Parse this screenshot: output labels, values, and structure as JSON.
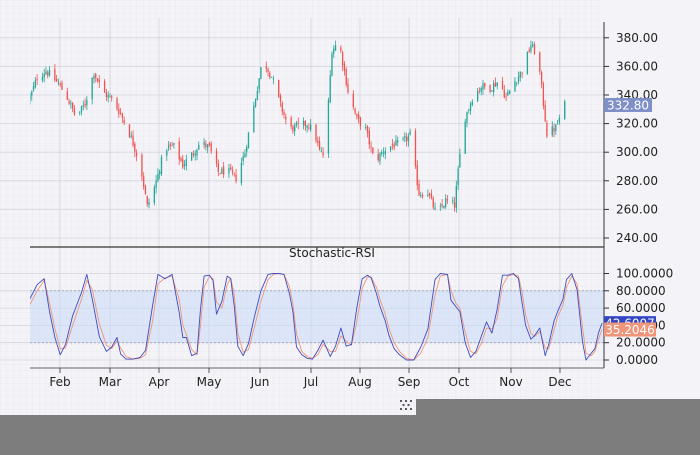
{
  "chart_data": [
    {
      "type": "candlestick",
      "panel": "price",
      "x_ticks": [
        "Feb",
        "Mar",
        "Apr",
        "May",
        "Jun",
        "Jul",
        "Aug",
        "Sep",
        "Oct",
        "Nov",
        "Dec"
      ],
      "y_ticks": [
        "240.00",
        "260.00",
        "280.00",
        "300.00",
        "320.00",
        "340.00",
        "360.00",
        "380.00"
      ],
      "ylim": [
        234,
        394
      ],
      "last_price_label": "332.80",
      "colors": {
        "up": "#26a69a",
        "down": "#ef5350",
        "last_price": "#7f8fc8"
      },
      "close_trace": [
        [
          0,
          338
        ],
        [
          4,
          352
        ],
        [
          9,
          357
        ],
        [
          16,
          348
        ],
        [
          21,
          338
        ],
        [
          26,
          324
        ],
        [
          31,
          334
        ],
        [
          36,
          356
        ],
        [
          41,
          342
        ],
        [
          46,
          337
        ],
        [
          51,
          327
        ],
        [
          57,
          310
        ],
        [
          62,
          292
        ],
        [
          66,
          262
        ],
        [
          70,
          275
        ],
        [
          76,
          303
        ],
        [
          81,
          304
        ],
        [
          86,
          291
        ],
        [
          91,
          298
        ],
        [
          96,
          307
        ],
        [
          101,
          303
        ],
        [
          106,
          286
        ],
        [
          111,
          287
        ],
        [
          116,
          282
        ],
        [
          121,
          300
        ],
        [
          126,
          332
        ],
        [
          131,
          365
        ],
        [
          136,
          353
        ],
        [
          141,
          333
        ],
        [
          146,
          316
        ],
        [
          151,
          318
        ],
        [
          156,
          320
        ],
        [
          160,
          314
        ],
        [
          163,
          301
        ],
        [
          166,
          297
        ],
        [
          170,
          372
        ],
        [
          174,
          377
        ],
        [
          179,
          343
        ],
        [
          184,
          323
        ],
        [
          189,
          316
        ],
        [
          194,
          293
        ],
        [
          199,
          301
        ],
        [
          204,
          305
        ],
        [
          209,
          306
        ],
        [
          214,
          312
        ],
        [
          219,
          271
        ],
        [
          224,
          272
        ],
        [
          229,
          256
        ],
        [
          234,
          266
        ],
        [
          239,
          263
        ],
        [
          244,
          321
        ],
        [
          249,
          338
        ],
        [
          254,
          346
        ],
        [
          259,
          345
        ],
        [
          264,
          350
        ],
        [
          268,
          338
        ],
        [
          272,
          348
        ],
        [
          277,
          357
        ],
        [
          282,
          375
        ],
        [
          286,
          366
        ],
        [
          291,
          313
        ],
        [
          296,
          317
        ],
        [
          301,
          333
        ]
      ]
    },
    {
      "type": "line",
      "panel": "indicator",
      "title": "Stochastic-RSI",
      "y_ticks": [
        "0.0000",
        "20.0000",
        "40.0000",
        "60.0000",
        "80.0000",
        "100.0000"
      ],
      "ylim": [
        -6,
        108
      ],
      "band": [
        20,
        80
      ],
      "x_ticks": [
        "Feb",
        "Mar",
        "Apr",
        "May",
        "Jun",
        "Jul",
        "Aug",
        "Sep",
        "Oct",
        "Nov",
        "Dec"
      ],
      "series": [
        {
          "label": "42.6007",
          "color": "#3f4bc0",
          "values": [
            [
              0,
              71
            ],
            [
              4,
              87
            ],
            [
              8,
              94
            ],
            [
              11,
              56
            ],
            [
              14,
              26
            ],
            [
              17,
              6
            ],
            [
              20,
              18
            ],
            [
              24,
              51
            ],
            [
              29,
              78
            ],
            [
              32,
              99
            ],
            [
              35,
              71
            ],
            [
              39,
              27
            ],
            [
              43,
              10
            ],
            [
              46,
              15
            ],
            [
              49,
              26
            ],
            [
              51,
              7
            ],
            [
              54,
              1
            ],
            [
              58,
              1
            ],
            [
              62,
              3
            ],
            [
              65,
              11
            ],
            [
              69,
              63
            ],
            [
              72,
              99
            ],
            [
              76,
              94
            ],
            [
              80,
              99
            ],
            [
              84,
              55
            ],
            [
              86,
              26
            ],
            [
              88,
              26
            ],
            [
              91,
              5
            ],
            [
              94,
              8
            ],
            [
              96,
              59
            ],
            [
              98,
              97
            ],
            [
              101,
              98
            ],
            [
              103,
              92
            ],
            [
              105,
              53
            ],
            [
              108,
              68
            ],
            [
              111,
              97
            ],
            [
              113,
              94
            ],
            [
              115,
              62
            ],
            [
              117,
              16
            ],
            [
              120,
              5
            ],
            [
              123,
              19
            ],
            [
              126,
              47
            ],
            [
              130,
              80
            ],
            [
              134,
              99
            ],
            [
              137,
              100
            ],
            [
              140,
              100
            ],
            [
              143,
              99
            ],
            [
              146,
              77
            ],
            [
              148,
              56
            ],
            [
              150,
              15
            ],
            [
              153,
              6
            ],
            [
              156,
              2
            ],
            [
              159,
              1
            ],
            [
              162,
              11
            ],
            [
              165,
              23
            ],
            [
              169,
              4
            ],
            [
              172,
              16
            ],
            [
              175,
              37
            ],
            [
              178,
              16
            ],
            [
              181,
              18
            ],
            [
              184,
              61
            ],
            [
              187,
              94
            ],
            [
              190,
              98
            ],
            [
              192,
              95
            ],
            [
              195,
              77
            ],
            [
              197,
              62
            ],
            [
              200,
              45
            ],
            [
              202,
              29
            ],
            [
              205,
              13
            ],
            [
              208,
              6
            ],
            [
              212,
              0
            ],
            [
              216,
              0
            ],
            [
              220,
              15
            ],
            [
              224,
              36
            ],
            [
              228,
              93
            ],
            [
              231,
              100
            ],
            [
              235,
              99
            ],
            [
              237,
              69
            ],
            [
              240,
              61
            ],
            [
              242,
              56
            ],
            [
              245,
              20
            ],
            [
              248,
              3
            ],
            [
              251,
              10
            ],
            [
              254,
              27
            ],
            [
              257,
              44
            ],
            [
              260,
              31
            ],
            [
              263,
              59
            ],
            [
              266,
              98
            ],
            [
              269,
              98
            ],
            [
              272,
              100
            ],
            [
              275,
              94
            ],
            [
              277,
              66
            ],
            [
              279,
              40
            ],
            [
              282,
              24
            ],
            [
              284,
              28
            ],
            [
              287,
              37
            ],
            [
              290,
              5
            ],
            [
              292,
              18
            ],
            [
              295,
              45
            ],
            [
              297,
              56
            ],
            [
              300,
              70
            ],
            [
              302,
              93
            ],
            [
              305,
              100
            ],
            [
              308,
              81
            ],
            [
              311,
              21
            ],
            [
              313,
              0
            ],
            [
              316,
              8
            ],
            [
              318,
              13
            ],
            [
              320,
              31
            ],
            [
              322,
              42.6
            ]
          ]
        },
        {
          "label": "35.2046",
          "color": "#f0957a",
          "values": [
            [
              0,
              64
            ],
            [
              4,
              80
            ],
            [
              8,
              92
            ],
            [
              11,
              66
            ],
            [
              14,
              36
            ],
            [
              17,
              13
            ],
            [
              20,
              14
            ],
            [
              24,
              40
            ],
            [
              29,
              70
            ],
            [
              32,
              92
            ],
            [
              35,
              82
            ],
            [
              39,
              42
            ],
            [
              43,
              17
            ],
            [
              46,
              13
            ],
            [
              49,
              22
            ],
            [
              51,
              14
            ],
            [
              54,
              4
            ],
            [
              58,
              1
            ],
            [
              62,
              2
            ],
            [
              65,
              6
            ],
            [
              69,
              45
            ],
            [
              72,
              88
            ],
            [
              76,
              95
            ],
            [
              80,
              97
            ],
            [
              84,
              70
            ],
            [
              86,
              40
            ],
            [
              88,
              30
            ],
            [
              91,
              12
            ],
            [
              94,
              6
            ],
            [
              96,
              40
            ],
            [
              98,
              84
            ],
            [
              101,
              97
            ],
            [
              103,
              94
            ],
            [
              105,
              67
            ],
            [
              108,
              60
            ],
            [
              111,
              87
            ],
            [
              113,
              95
            ],
            [
              115,
              75
            ],
            [
              117,
              31
            ],
            [
              120,
              9
            ],
            [
              123,
              12
            ],
            [
              126,
              35
            ],
            [
              130,
              68
            ],
            [
              134,
              93
            ],
            [
              137,
              99
            ],
            [
              140,
              100
            ],
            [
              143,
              99
            ],
            [
              146,
              85
            ],
            [
              148,
              65
            ],
            [
              150,
              30
            ],
            [
              153,
              10
            ],
            [
              156,
              4
            ],
            [
              159,
              2
            ],
            [
              162,
              6
            ],
            [
              165,
              18
            ],
            [
              169,
              10
            ],
            [
              172,
              10
            ],
            [
              175,
              28
            ],
            [
              178,
              22
            ],
            [
              181,
              17
            ],
            [
              184,
              45
            ],
            [
              187,
              83
            ],
            [
              190,
              96
            ],
            [
              192,
              96
            ],
            [
              195,
              84
            ],
            [
              197,
              70
            ],
            [
              200,
              53
            ],
            [
              202,
              37
            ],
            [
              205,
              20
            ],
            [
              208,
              10
            ],
            [
              212,
              2
            ],
            [
              216,
              0
            ],
            [
              220,
              8
            ],
            [
              224,
              26
            ],
            [
              228,
              75
            ],
            [
              231,
              97
            ],
            [
              235,
              99
            ],
            [
              237,
              80
            ],
            [
              240,
              65
            ],
            [
              242,
              60
            ],
            [
              245,
              32
            ],
            [
              248,
              10
            ],
            [
              251,
              7
            ],
            [
              254,
              19
            ],
            [
              257,
              37
            ],
            [
              260,
              36
            ],
            [
              263,
              48
            ],
            [
              266,
              86
            ],
            [
              269,
              97
            ],
            [
              272,
              99
            ],
            [
              275,
              97
            ],
            [
              277,
              78
            ],
            [
              279,
              52
            ],
            [
              282,
              31
            ],
            [
              284,
              27
            ],
            [
              287,
              33
            ],
            [
              290,
              14
            ],
            [
              292,
              13
            ],
            [
              295,
              35
            ],
            [
              297,
              50
            ],
            [
              300,
              63
            ],
            [
              302,
              84
            ],
            [
              305,
              97
            ],
            [
              308,
              88
            ],
            [
              311,
              38
            ],
            [
              313,
              8
            ],
            [
              316,
              5
            ],
            [
              318,
              10
            ],
            [
              320,
              24
            ],
            [
              322,
              35.2
            ]
          ]
        }
      ]
    }
  ]
}
